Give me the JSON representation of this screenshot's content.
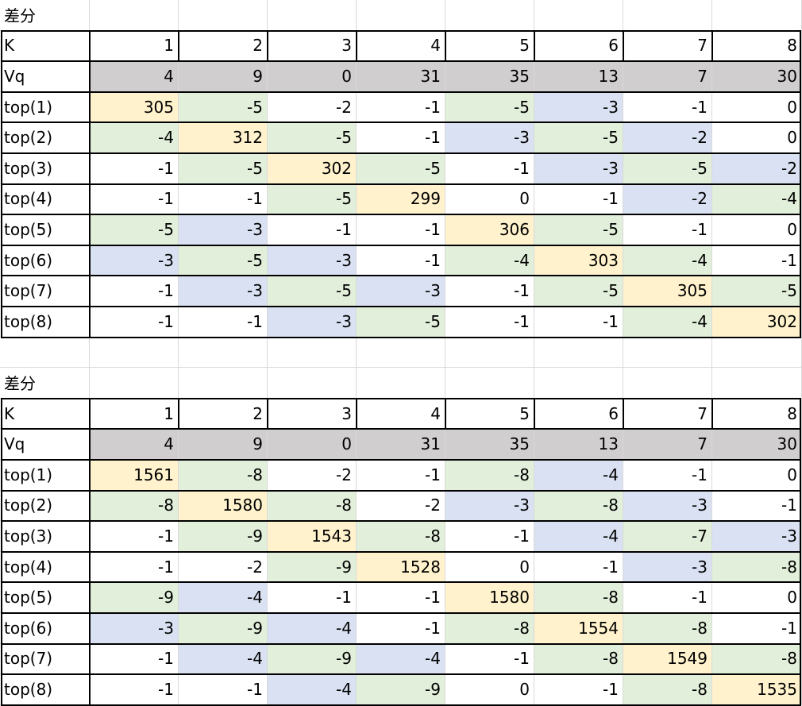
{
  "colors": {
    "diagonal": "#fff2cc",
    "green": "#e2efda",
    "blue": "#d9e1f2",
    "vq_row": "#d0cece",
    "white": "#ffffff"
  },
  "tables": [
    {
      "title": "差分",
      "k_label": "K",
      "k_values": [
        "1",
        "2",
        "3",
        "4",
        "5",
        "6",
        "7",
        "8"
      ],
      "vq_label": "Vq",
      "vq_values": [
        "4",
        "9",
        "0",
        "31",
        "35",
        "13",
        "7",
        "30"
      ],
      "rows": [
        {
          "label": "top(1)",
          "values": [
            "305",
            "-5",
            "-2",
            "-1",
            "-5",
            "-3",
            "-1",
            "0"
          ],
          "fills": [
            "y",
            "g",
            "w",
            "w",
            "g",
            "b",
            "w",
            "w"
          ]
        },
        {
          "label": "top(2)",
          "values": [
            "-4",
            "312",
            "-5",
            "-1",
            "-3",
            "-5",
            "-2",
            "0"
          ],
          "fills": [
            "g",
            "y",
            "g",
            "w",
            "b",
            "g",
            "b",
            "w"
          ]
        },
        {
          "label": "top(3)",
          "values": [
            "-1",
            "-5",
            "302",
            "-5",
            "-1",
            "-3",
            "-5",
            "-2"
          ],
          "fills": [
            "w",
            "g",
            "y",
            "g",
            "w",
            "b",
            "g",
            "b"
          ]
        },
        {
          "label": "top(4)",
          "values": [
            "-1",
            "-1",
            "-5",
            "299",
            "0",
            "-1",
            "-2",
            "-4"
          ],
          "fills": [
            "w",
            "w",
            "g",
            "y",
            "w",
            "w",
            "b",
            "g"
          ]
        },
        {
          "label": "top(5)",
          "values": [
            "-5",
            "-3",
            "-1",
            "-1",
            "306",
            "-5",
            "-1",
            "0"
          ],
          "fills": [
            "g",
            "b",
            "w",
            "w",
            "y",
            "g",
            "w",
            "w"
          ]
        },
        {
          "label": "top(6)",
          "values": [
            "-3",
            "-5",
            "-3",
            "-1",
            "-4",
            "303",
            "-4",
            "-1"
          ],
          "fills": [
            "b",
            "g",
            "b",
            "w",
            "g",
            "y",
            "g",
            "w"
          ]
        },
        {
          "label": "top(7)",
          "values": [
            "-1",
            "-3",
            "-5",
            "-3",
            "-1",
            "-5",
            "305",
            "-5"
          ],
          "fills": [
            "w",
            "b",
            "g",
            "b",
            "w",
            "g",
            "y",
            "g"
          ]
        },
        {
          "label": "top(8)",
          "values": [
            "-1",
            "-1",
            "-3",
            "-5",
            "-1",
            "-1",
            "-4",
            "302"
          ],
          "fills": [
            "w",
            "w",
            "b",
            "g",
            "w",
            "w",
            "g",
            "y"
          ]
        }
      ]
    },
    {
      "title": "差分",
      "k_label": "K",
      "k_values": [
        "1",
        "2",
        "3",
        "4",
        "5",
        "6",
        "7",
        "8"
      ],
      "vq_label": "Vq",
      "vq_values": [
        "4",
        "9",
        "0",
        "31",
        "35",
        "13",
        "7",
        "30"
      ],
      "rows": [
        {
          "label": "top(1)",
          "values": [
            "1561",
            "-8",
            "-2",
            "-1",
            "-8",
            "-4",
            "-1",
            "0"
          ],
          "fills": [
            "y",
            "g",
            "w",
            "w",
            "g",
            "b",
            "w",
            "w"
          ]
        },
        {
          "label": "top(2)",
          "values": [
            "-8",
            "1580",
            "-8",
            "-2",
            "-3",
            "-8",
            "-3",
            "-1"
          ],
          "fills": [
            "g",
            "y",
            "g",
            "w",
            "b",
            "g",
            "b",
            "w"
          ]
        },
        {
          "label": "top(3)",
          "values": [
            "-1",
            "-9",
            "1543",
            "-8",
            "-1",
            "-4",
            "-7",
            "-3"
          ],
          "fills": [
            "w",
            "g",
            "y",
            "g",
            "w",
            "b",
            "g",
            "b"
          ]
        },
        {
          "label": "top(4)",
          "values": [
            "-1",
            "-2",
            "-9",
            "1528",
            "0",
            "-1",
            "-3",
            "-8"
          ],
          "fills": [
            "w",
            "w",
            "g",
            "y",
            "w",
            "w",
            "b",
            "g"
          ]
        },
        {
          "label": "top(5)",
          "values": [
            "-9",
            "-4",
            "-1",
            "-1",
            "1580",
            "-8",
            "-1",
            "0"
          ],
          "fills": [
            "g",
            "b",
            "w",
            "w",
            "y",
            "g",
            "w",
            "w"
          ]
        },
        {
          "label": "top(6)",
          "values": [
            "-3",
            "-9",
            "-4",
            "-1",
            "-8",
            "1554",
            "-8",
            "-1"
          ],
          "fills": [
            "b",
            "g",
            "b",
            "w",
            "g",
            "y",
            "g",
            "w"
          ]
        },
        {
          "label": "top(7)",
          "values": [
            "-1",
            "-4",
            "-9",
            "-4",
            "-1",
            "-8",
            "1549",
            "-8"
          ],
          "fills": [
            "w",
            "b",
            "g",
            "b",
            "w",
            "g",
            "y",
            "g"
          ]
        },
        {
          "label": "top(8)",
          "values": [
            "-1",
            "-1",
            "-4",
            "-9",
            "0",
            "-1",
            "-8",
            "1535"
          ],
          "fills": [
            "w",
            "w",
            "b",
            "g",
            "w",
            "w",
            "g",
            "y"
          ]
        }
      ]
    }
  ]
}
